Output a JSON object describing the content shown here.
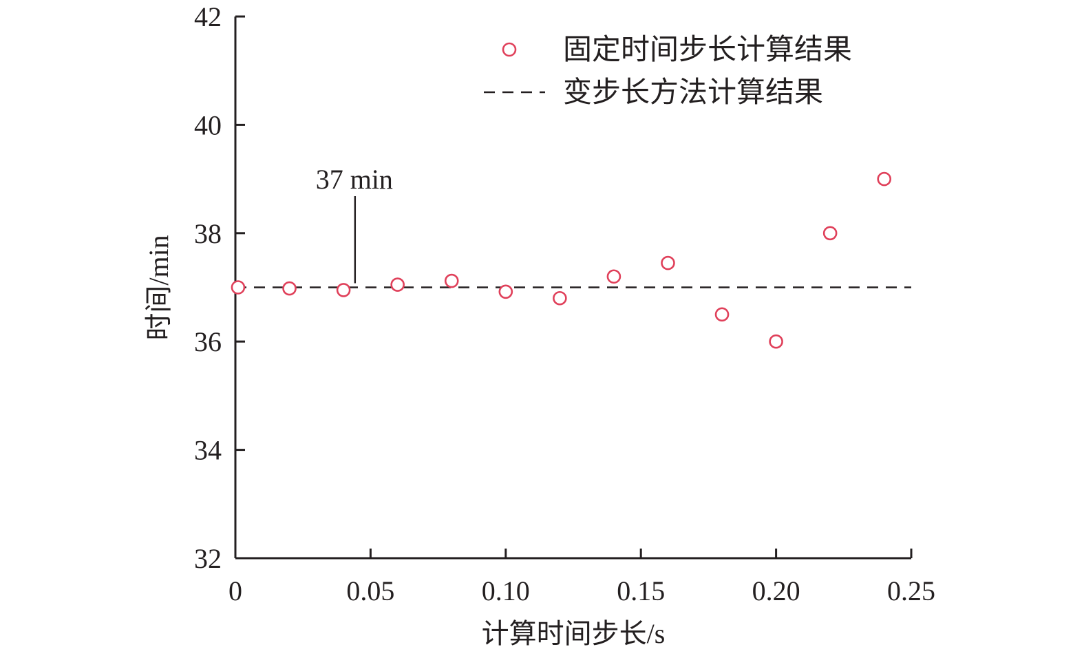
{
  "chart_data": {
    "type": "scatter",
    "xlabel": "计算时间步长/s",
    "ylabel": "时间/min",
    "xlim": [
      0,
      0.25
    ],
    "ylim": [
      32,
      42
    ],
    "x_ticks": [
      0,
      0.05,
      0.1,
      0.15,
      0.2,
      0.25
    ],
    "x_tick_labels": [
      "0",
      "0.05",
      "0.10",
      "0.15",
      "0.20",
      "0.25"
    ],
    "y_ticks": [
      32,
      34,
      36,
      38,
      40,
      42
    ],
    "y_tick_labels": [
      "32",
      "34",
      "36",
      "38",
      "40",
      "42"
    ],
    "grid": false,
    "legend_position": "top-right",
    "series": [
      {
        "name": "固定时间步长计算结果",
        "kind": "scatter",
        "marker": "open-circle",
        "color": "#e0405a",
        "x": [
          0.001,
          0.02,
          0.04,
          0.06,
          0.08,
          0.1,
          0.12,
          0.14,
          0.16,
          0.18,
          0.2,
          0.22,
          0.24
        ],
        "y": [
          37.0,
          36.98,
          36.95,
          37.05,
          37.12,
          36.92,
          36.8,
          37.2,
          37.45,
          36.5,
          36.0,
          38.0,
          39.0
        ]
      },
      {
        "name": "变步长方法计算结果",
        "kind": "reference-line",
        "style": "dashed",
        "color": "#231f20",
        "y": 37
      }
    ],
    "annotations": [
      {
        "text": "37 min",
        "x": 0.044,
        "y": 37
      }
    ]
  }
}
